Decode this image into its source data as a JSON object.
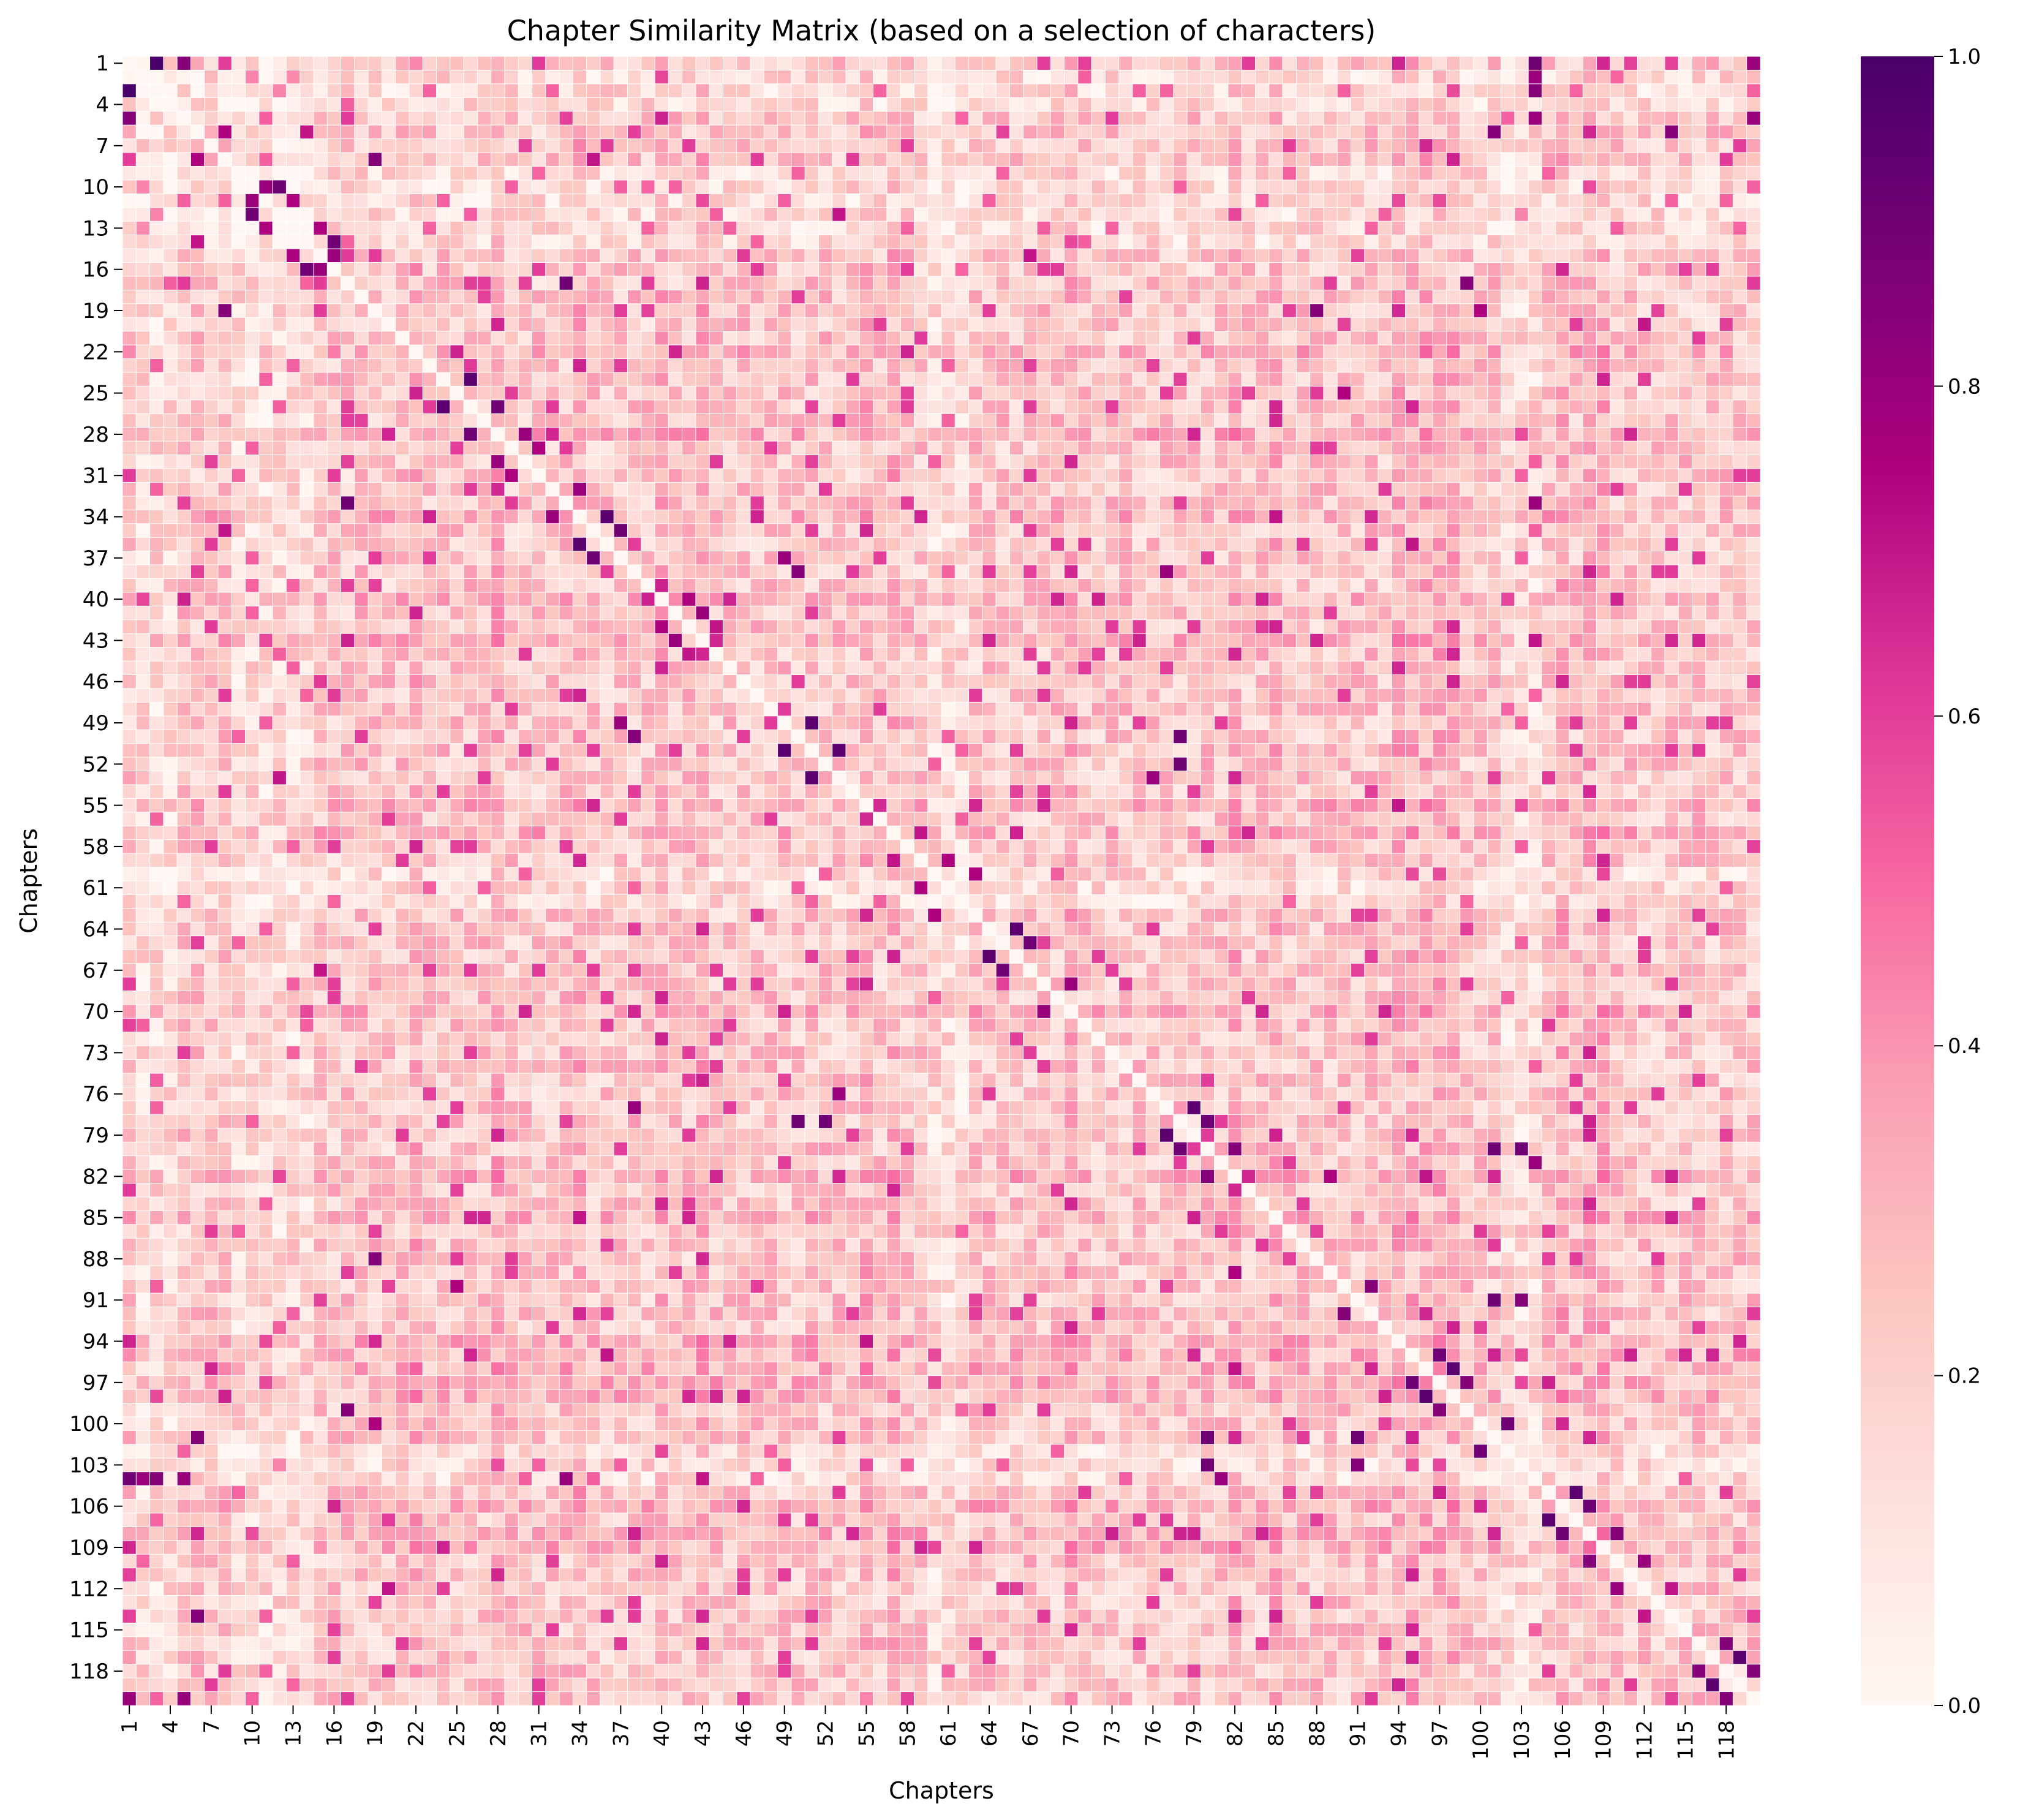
{
  "chart_data": {
    "type": "heatmap",
    "title": "Chapter Similarity Matrix (based on a selection of characters)",
    "xlabel": "Chapters",
    "ylabel": "Chapters",
    "n_chapters": 120,
    "x_tick_labels": [
      "1",
      "4",
      "7",
      "10",
      "13",
      "16",
      "19",
      "22",
      "25",
      "28",
      "31",
      "34",
      "37",
      "40",
      "43",
      "46",
      "49",
      "52",
      "55",
      "58",
      "61",
      "64",
      "67",
      "70",
      "73",
      "76",
      "79",
      "82",
      "85",
      "88",
      "91",
      "94",
      "97",
      "100",
      "103",
      "106",
      "109",
      "112",
      "115",
      "118"
    ],
    "y_tick_labels": [
      "1",
      "4",
      "7",
      "10",
      "13",
      "16",
      "19",
      "22",
      "25",
      "28",
      "31",
      "34",
      "37",
      "40",
      "43",
      "46",
      "49",
      "52",
      "55",
      "58",
      "61",
      "64",
      "67",
      "70",
      "73",
      "76",
      "79",
      "82",
      "85",
      "88",
      "91",
      "94",
      "97",
      "100",
      "103",
      "106",
      "109",
      "112",
      "115",
      "118"
    ],
    "colorbar": {
      "colormap": "RdPu",
      "vmin": 0.0,
      "vmax": 1.0,
      "tick_labels": [
        "0.0",
        "0.2",
        "0.4",
        "0.6",
        "0.8",
        "1.0"
      ],
      "tick_values": [
        0.0,
        0.2,
        0.4,
        0.6,
        0.8,
        1.0
      ],
      "stops": [
        "#fff7f3",
        "#fde0dd",
        "#fcc5c0",
        "#fa9fb5",
        "#f768a1",
        "#dd3497",
        "#ae017e",
        "#7a0177",
        "#49006a"
      ]
    },
    "diagonal_value": 0.0,
    "strong_pairs": [
      [
        1,
        3,
        1.0
      ],
      [
        1,
        5,
        0.85
      ],
      [
        1,
        104,
        0.9
      ],
      [
        1,
        120,
        0.8
      ],
      [
        2,
        104,
        0.8
      ],
      [
        3,
        104,
        0.85
      ],
      [
        5,
        104,
        0.8
      ],
      [
        5,
        120,
        0.8
      ],
      [
        6,
        8,
        0.75
      ],
      [
        6,
        14,
        0.7
      ],
      [
        6,
        101,
        0.85
      ],
      [
        6,
        114,
        0.85
      ],
      [
        8,
        19,
        0.85
      ],
      [
        8,
        35,
        0.7
      ],
      [
        10,
        12,
        0.9
      ],
      [
        10,
        11,
        0.8
      ],
      [
        11,
        13,
        0.75
      ],
      [
        12,
        53,
        0.7
      ],
      [
        13,
        15,
        0.75
      ],
      [
        14,
        16,
        0.9
      ],
      [
        15,
        16,
        0.8
      ],
      [
        15,
        67,
        0.7
      ],
      [
        17,
        33,
        0.9
      ],
      [
        17,
        99,
        0.85
      ],
      [
        19,
        88,
        0.85
      ],
      [
        19,
        100,
        0.75
      ],
      [
        20,
        112,
        0.7
      ],
      [
        24,
        26,
        0.95
      ],
      [
        25,
        90,
        0.75
      ],
      [
        26,
        28,
        0.9
      ],
      [
        28,
        30,
        0.8
      ],
      [
        29,
        31,
        0.75
      ],
      [
        32,
        34,
        0.8
      ],
      [
        33,
        104,
        0.8
      ],
      [
        34,
        36,
        0.95
      ],
      [
        35,
        37,
        0.9
      ],
      [
        36,
        95,
        0.7
      ],
      [
        37,
        49,
        0.8
      ],
      [
        38,
        50,
        0.85
      ],
      [
        38,
        77,
        0.8
      ],
      [
        40,
        42,
        0.75
      ],
      [
        41,
        43,
        0.8
      ],
      [
        42,
        44,
        0.7
      ],
      [
        43,
        104,
        0.7
      ],
      [
        49,
        51,
        0.95
      ],
      [
        50,
        78,
        0.9
      ],
      [
        51,
        53,
        0.95
      ],
      [
        52,
        78,
        0.9
      ],
      [
        53,
        76,
        0.8
      ],
      [
        57,
        59,
        0.7
      ],
      [
        59,
        61,
        0.75
      ],
      [
        60,
        63,
        0.75
      ],
      [
        64,
        66,
        0.95
      ],
      [
        65,
        67,
        0.9
      ],
      [
        68,
        70,
        0.8
      ],
      [
        77,
        79,
        0.95
      ],
      [
        78,
        80,
        0.9
      ],
      [
        80,
        82,
        0.85
      ],
      [
        80,
        101,
        0.9
      ],
      [
        80,
        103,
        0.9
      ],
      [
        81,
        104,
        0.8
      ],
      [
        82,
        89,
        0.75
      ],
      [
        90,
        92,
        0.85
      ],
      [
        91,
        101,
        0.9
      ],
      [
        91,
        103,
        0.85
      ],
      [
        95,
        97,
        0.9
      ],
      [
        96,
        98,
        0.95
      ],
      [
        97,
        99,
        0.85
      ],
      [
        100,
        102,
        0.9
      ],
      [
        105,
        107,
        0.95
      ],
      [
        106,
        108,
        0.9
      ],
      [
        108,
        110,
        0.85
      ],
      [
        110,
        112,
        0.8
      ],
      [
        112,
        114,
        0.7
      ],
      [
        116,
        118,
        0.85
      ],
      [
        117,
        119,
        0.95
      ],
      [
        118,
        120,
        0.85
      ]
    ],
    "dense_row_bands": [
      22,
      28,
      34,
      40,
      43,
      55,
      57,
      70,
      82,
      85,
      94,
      95,
      96,
      97,
      98,
      106,
      108,
      109
    ],
    "sparse_row_bands": [
      2,
      3,
      4,
      9,
      10,
      11,
      12,
      13,
      14,
      60,
      61,
      62,
      102,
      103,
      104
    ]
  }
}
